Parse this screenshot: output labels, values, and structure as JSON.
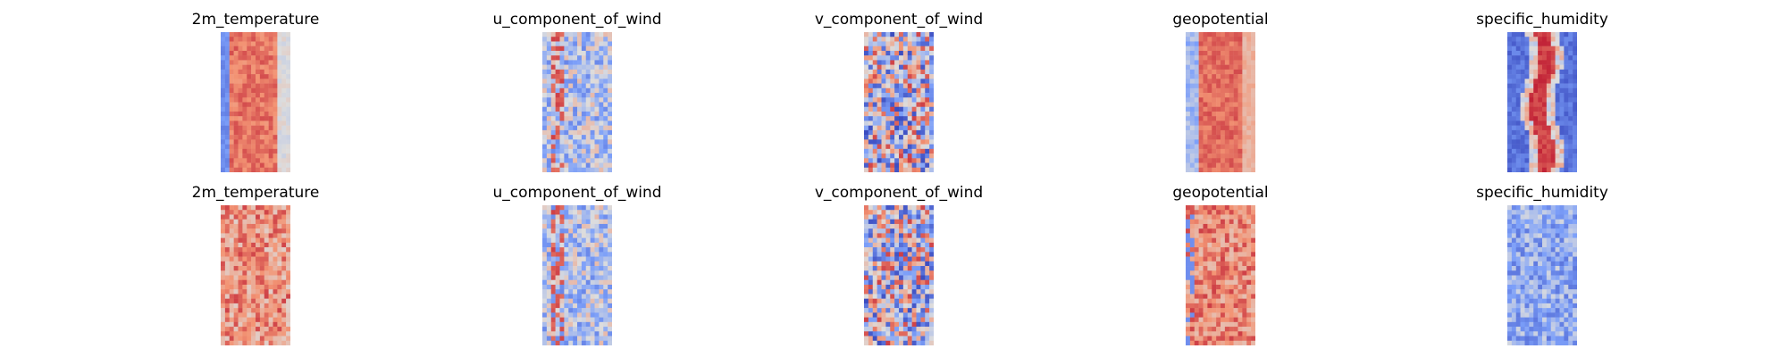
{
  "figure": {
    "colormap": "coolwarm",
    "axes_visible": false,
    "colors": {
      "cold": "#3b4cc0",
      "neutral": "#dddddd",
      "warm": "#b40426"
    }
  },
  "chart_data": [
    {
      "type": "heatmap",
      "row": 1,
      "col": 1,
      "title": "2m_temperature",
      "pattern": "warm band, cold left edge",
      "mean_level": 0.75
    },
    {
      "type": "heatmap",
      "row": 1,
      "col": 2,
      "title": "u_component_of_wind",
      "pattern": "mixed, warm streaks left",
      "mean_level": 0.45
    },
    {
      "type": "heatmap",
      "row": 1,
      "col": 3,
      "title": "v_component_of_wind",
      "pattern": "fine-scale blue/red noise",
      "mean_level": 0.45
    },
    {
      "type": "heatmap",
      "row": 1,
      "col": 4,
      "title": "geopotential",
      "pattern": "warm band with cold left patch",
      "mean_level": 0.78
    },
    {
      "type": "heatmap",
      "row": 1,
      "col": 5,
      "title": "specific_humidity",
      "pattern": "dark red central streak, blue edges",
      "mean_level": 0.4
    },
    {
      "type": "heatmap",
      "row": 2,
      "col": 1,
      "title": "2m_temperature",
      "pattern": "blocky warm field",
      "mean_level": 0.72
    },
    {
      "type": "heatmap",
      "row": 2,
      "col": 2,
      "title": "u_component_of_wind",
      "pattern": "mixed, warm streaks",
      "mean_level": 0.45
    },
    {
      "type": "heatmap",
      "row": 2,
      "col": 3,
      "title": "v_component_of_wind",
      "pattern": "fine-scale blue/red noise",
      "mean_level": 0.45
    },
    {
      "type": "heatmap",
      "row": 2,
      "col": 4,
      "title": "geopotential",
      "pattern": "warm speckled field",
      "mean_level": 0.75
    },
    {
      "type": "heatmap",
      "row": 2,
      "col": 5,
      "title": "specific_humidity",
      "pattern": "blue noisy field",
      "mean_level": 0.3
    }
  ]
}
